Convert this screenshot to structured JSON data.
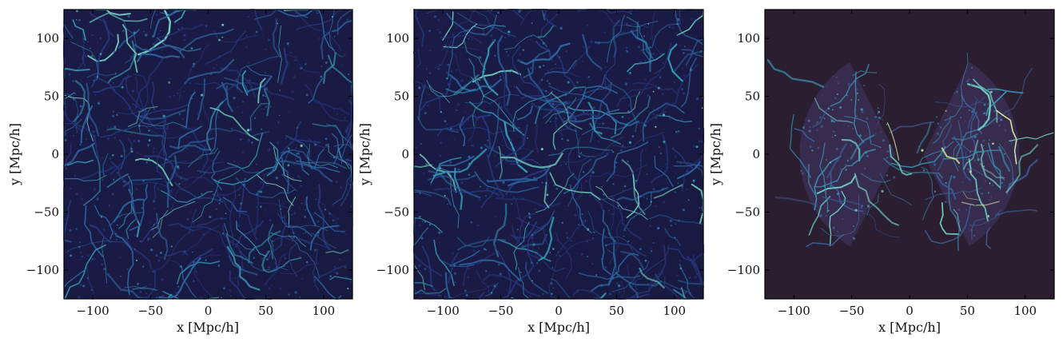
{
  "chart_data": [
    {
      "type": "heatmap",
      "title": "",
      "description_kind": "density-field",
      "xlabel": "x [Mpc/h]",
      "ylabel": "y [Mpc/h]",
      "xlim": [
        -125,
        125
      ],
      "ylim": [
        -125,
        125
      ],
      "xticks": [
        -100,
        -50,
        0,
        50,
        100
      ],
      "yticks": [
        -100,
        -50,
        0,
        50,
        100
      ],
      "xtick_labels": [
        "−100",
        "−50",
        "0",
        "50",
        "100"
      ],
      "ytick_labels": [
        "−100",
        "−50",
        "0",
        "50",
        "100"
      ],
      "colormap": [
        "#1c1d4a",
        "#2a3a86",
        "#2f6fb0",
        "#3aa8c4",
        "#7de3d3"
      ],
      "mask": "none",
      "grid": false,
      "legend": "none"
    },
    {
      "type": "heatmap",
      "title": "",
      "description_kind": "density-field",
      "xlabel": "x [Mpc/h]",
      "ylabel": "y [Mpc/h]",
      "xlim": [
        -125,
        125
      ],
      "ylim": [
        -125,
        125
      ],
      "xticks": [
        -100,
        -50,
        0,
        50,
        100
      ],
      "yticks": [
        -100,
        -50,
        0,
        50,
        100
      ],
      "xtick_labels": [
        "−100",
        "−50",
        "0",
        "50",
        "100"
      ],
      "ytick_labels": [
        "−100",
        "−50",
        "0",
        "50",
        "100"
      ],
      "colormap": [
        "#1c1d4a",
        "#2a3a86",
        "#2f6fb0",
        "#3aa8c4",
        "#7de3d3"
      ],
      "mask": "none",
      "grid": false,
      "legend": "none"
    },
    {
      "type": "heatmap",
      "title": "",
      "description_kind": "survey-footprint",
      "xlabel": "x [Mpc/h]",
      "ylabel": "y [Mpc/h]",
      "xlim": [
        -125,
        125
      ],
      "ylim": [
        -125,
        125
      ],
      "xticks": [
        -100,
        -50,
        0,
        50,
        100
      ],
      "yticks": [
        -100,
        -50,
        0,
        50,
        100
      ],
      "xtick_labels": [
        "−100",
        "−50",
        "0",
        "50",
        "100"
      ],
      "ytick_labels": [
        "−100",
        "−50",
        "0",
        "50",
        "100"
      ],
      "background_color": "#2a1e30",
      "colormap": [
        "#3a2e52",
        "#3c5a96",
        "#3b8fb2",
        "#6fd1c6",
        "#dff7a0"
      ],
      "mask": "double-wedge",
      "wedge_half_opening_deg": 57,
      "wedge_max_radius": 95,
      "grid": false,
      "legend": "none"
    }
  ]
}
